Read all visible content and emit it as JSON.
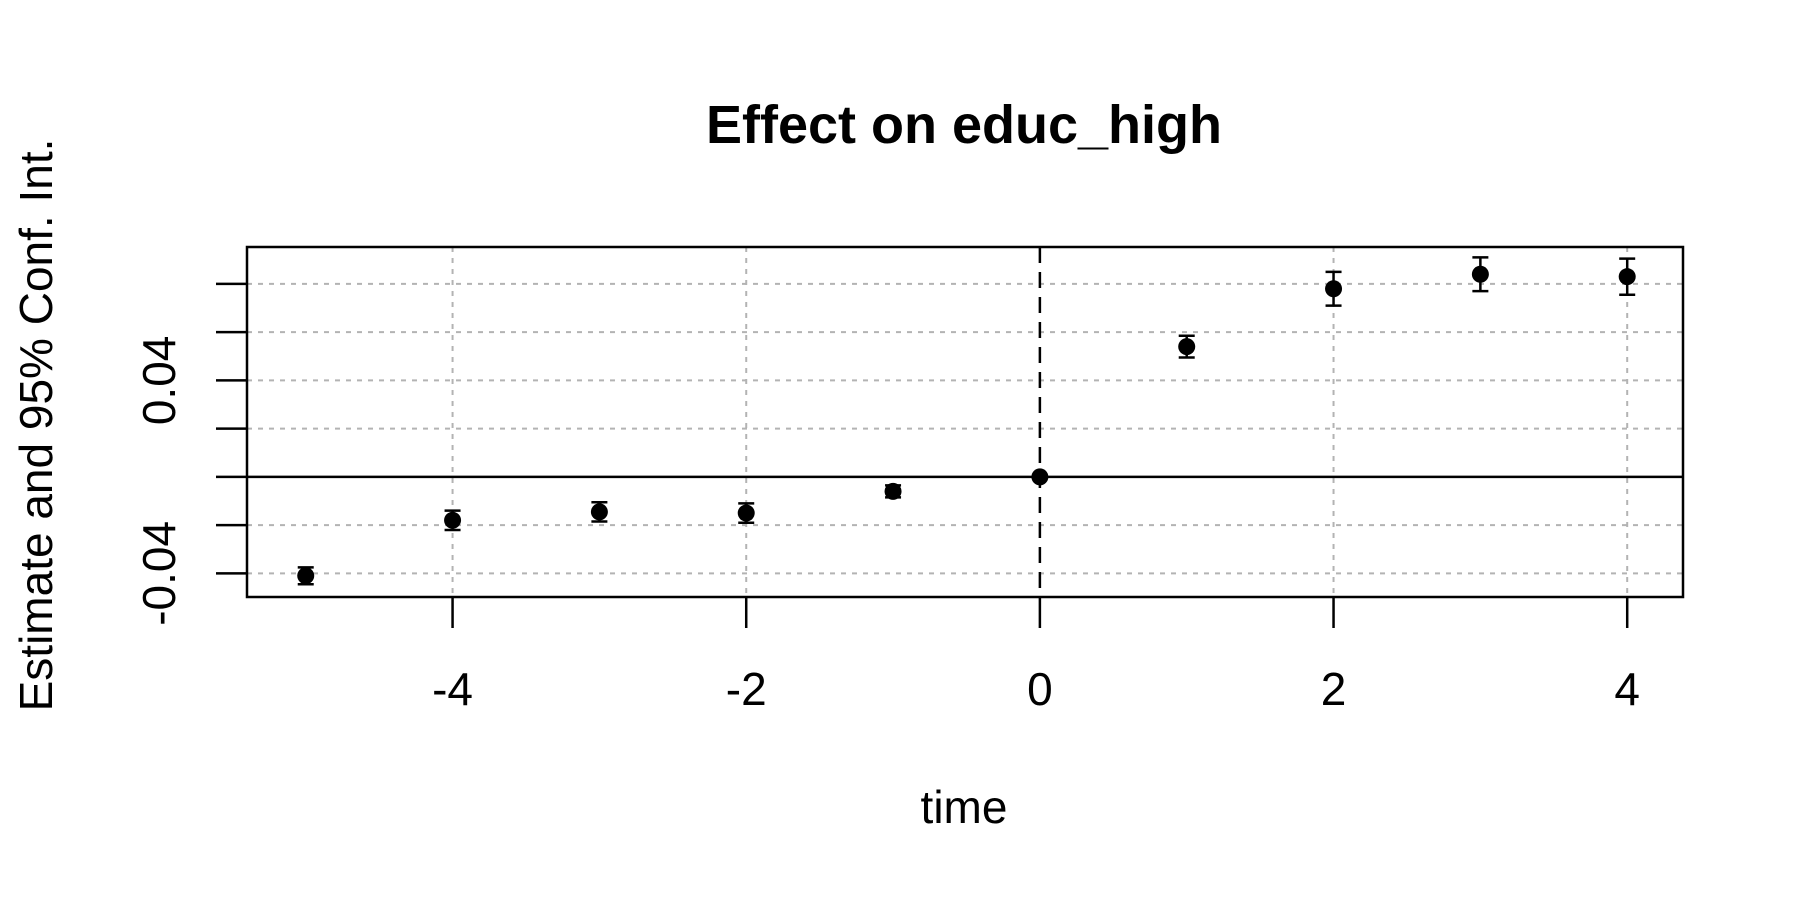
{
  "chart_data": {
    "type": "scatter",
    "title": "Effect on educ_high",
    "xlabel": "time",
    "ylabel": "Estimate and 95% Conf. Int.",
    "x_ticks": [
      "-4",
      "-2",
      "0",
      "2",
      "4"
    ],
    "y_ticks": [
      "-0.04",
      "0.04"
    ],
    "xlim": [
      -5.4,
      4.38
    ],
    "ylim": [
      -0.0498,
      0.0953
    ],
    "grid": true,
    "reference_line_x": 0,
    "reference_line_y": 0,
    "series": [
      {
        "x": [
          -5,
          -4,
          -3,
          -2,
          -1,
          0,
          1,
          2,
          3,
          4
        ],
        "y": [
          -0.041,
          -0.018,
          -0.0145,
          -0.015,
          -0.006,
          0.0,
          0.054,
          0.078,
          0.084,
          0.083
        ],
        "ci_low": [
          -0.0445,
          -0.022,
          -0.0185,
          -0.019,
          -0.0085,
          0.0,
          0.0495,
          0.071,
          0.077,
          0.0755
        ],
        "ci_high": [
          -0.0375,
          -0.014,
          -0.0105,
          -0.011,
          -0.0035,
          0.0,
          0.0585,
          0.085,
          0.091,
          0.0905
        ]
      }
    ]
  }
}
